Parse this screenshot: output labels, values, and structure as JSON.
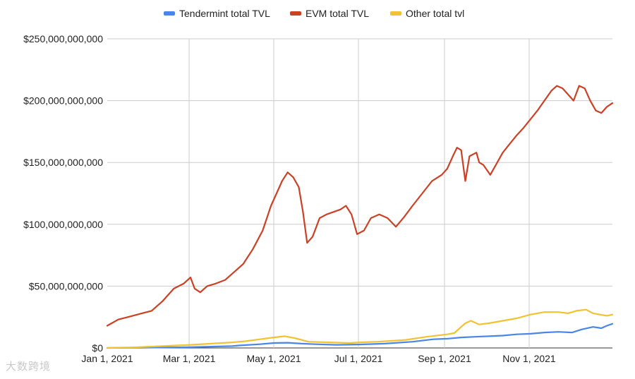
{
  "chart_data": {
    "type": "line",
    "title": "",
    "xlabel": "",
    "ylabel": "",
    "x_ticks": [
      "Jan 1, 2021",
      "Mar 1, 2021",
      "May 1, 2021",
      "Jul 1, 2021",
      "Sep 1, 2021",
      "Nov 1, 2021"
    ],
    "x_tick_days": [
      0,
      59,
      120,
      181,
      243,
      304
    ],
    "x_range_days": [
      0,
      364
    ],
    "y_ticks": [
      "$0",
      "$50,000,000,000",
      "$100,000,000,000",
      "$150,000,000,000",
      "$200,000,000,000",
      "$250,000,000,000"
    ],
    "y_tick_values": [
      0,
      50,
      100,
      150,
      200,
      250
    ],
    "y_unit": "billions USD",
    "ylim": [
      0,
      250
    ],
    "grid": true,
    "legend_position": "top",
    "series": [
      {
        "name": "Tendermint total TVL",
        "color": "#4a86e8",
        "points": [
          [
            0,
            0
          ],
          [
            30,
            0.3
          ],
          [
            60,
            0.6
          ],
          [
            90,
            1.5
          ],
          [
            95,
            2
          ],
          [
            110,
            3
          ],
          [
            120,
            4
          ],
          [
            130,
            4.2
          ],
          [
            140,
            3.5
          ],
          [
            150,
            3
          ],
          [
            165,
            2.5
          ],
          [
            181,
            2.8
          ],
          [
            200,
            3.5
          ],
          [
            220,
            5
          ],
          [
            235,
            7
          ],
          [
            245,
            7.5
          ],
          [
            255,
            8.5
          ],
          [
            265,
            9
          ],
          [
            275,
            9.5
          ],
          [
            285,
            10
          ],
          [
            295,
            11
          ],
          [
            305,
            11.5
          ],
          [
            315,
            12.5
          ],
          [
            325,
            13
          ],
          [
            335,
            12.5
          ],
          [
            342,
            15
          ],
          [
            350,
            17
          ],
          [
            356,
            16
          ],
          [
            360,
            18
          ],
          [
            364,
            19.5
          ]
        ]
      },
      {
        "name": "EVM total TVL",
        "color": "#cc4125",
        "points": [
          [
            0,
            18
          ],
          [
            8,
            23
          ],
          [
            15,
            25
          ],
          [
            25,
            28
          ],
          [
            32,
            30
          ],
          [
            40,
            38
          ],
          [
            48,
            48
          ],
          [
            55,
            52
          ],
          [
            60,
            57
          ],
          [
            63,
            48
          ],
          [
            67,
            45
          ],
          [
            72,
            50
          ],
          [
            78,
            52
          ],
          [
            85,
            55
          ],
          [
            92,
            62
          ],
          [
            98,
            68
          ],
          [
            105,
            80
          ],
          [
            112,
            95
          ],
          [
            118,
            115
          ],
          [
            122,
            125
          ],
          [
            126,
            135
          ],
          [
            130,
            142
          ],
          [
            134,
            138
          ],
          [
            138,
            130
          ],
          [
            141,
            110
          ],
          [
            144,
            85
          ],
          [
            148,
            90
          ],
          [
            153,
            105
          ],
          [
            158,
            108
          ],
          [
            163,
            110
          ],
          [
            168,
            112
          ],
          [
            172,
            115
          ],
          [
            176,
            108
          ],
          [
            180,
            92
          ],
          [
            185,
            95
          ],
          [
            190,
            105
          ],
          [
            196,
            108
          ],
          [
            202,
            105
          ],
          [
            208,
            98
          ],
          [
            214,
            106
          ],
          [
            220,
            115
          ],
          [
            227,
            125
          ],
          [
            234,
            135
          ],
          [
            241,
            140
          ],
          [
            245,
            145
          ],
          [
            249,
            155
          ],
          [
            252,
            162
          ],
          [
            255,
            160
          ],
          [
            258,
            135
          ],
          [
            261,
            155
          ],
          [
            266,
            158
          ],
          [
            268,
            150
          ],
          [
            271,
            148
          ],
          [
            276,
            140
          ],
          [
            280,
            148
          ],
          [
            285,
            158
          ],
          [
            290,
            165
          ],
          [
            295,
            172
          ],
          [
            300,
            178
          ],
          [
            305,
            185
          ],
          [
            310,
            192
          ],
          [
            315,
            200
          ],
          [
            320,
            208
          ],
          [
            324,
            212
          ],
          [
            328,
            210
          ],
          [
            332,
            205
          ],
          [
            336,
            200
          ],
          [
            340,
            212
          ],
          [
            344,
            210
          ],
          [
            348,
            200
          ],
          [
            352,
            192
          ],
          [
            356,
            190
          ],
          [
            360,
            195
          ],
          [
            364,
            198
          ]
        ]
      },
      {
        "name": "Other total tvl",
        "color": "#f1c232",
        "points": [
          [
            0,
            0
          ],
          [
            20,
            0.5
          ],
          [
            40,
            1.5
          ],
          [
            60,
            2.5
          ],
          [
            75,
            3.5
          ],
          [
            90,
            4.5
          ],
          [
            100,
            5.5
          ],
          [
            110,
            7
          ],
          [
            120,
            8.5
          ],
          [
            128,
            9.5
          ],
          [
            135,
            8
          ],
          [
            145,
            5
          ],
          [
            160,
            4.5
          ],
          [
            175,
            4
          ],
          [
            181,
            4.5
          ],
          [
            195,
            5
          ],
          [
            215,
            6.5
          ],
          [
            230,
            9
          ],
          [
            245,
            11
          ],
          [
            250,
            12
          ],
          [
            255,
            17
          ],
          [
            258,
            20
          ],
          [
            262,
            22
          ],
          [
            268,
            19
          ],
          [
            275,
            20
          ],
          [
            285,
            22
          ],
          [
            295,
            24
          ],
          [
            305,
            27
          ],
          [
            315,
            29
          ],
          [
            325,
            29
          ],
          [
            332,
            28
          ],
          [
            338,
            30
          ],
          [
            345,
            31
          ],
          [
            350,
            28
          ],
          [
            355,
            27
          ],
          [
            360,
            26
          ],
          [
            364,
            27
          ]
        ]
      }
    ]
  },
  "watermark": "大数跨境"
}
